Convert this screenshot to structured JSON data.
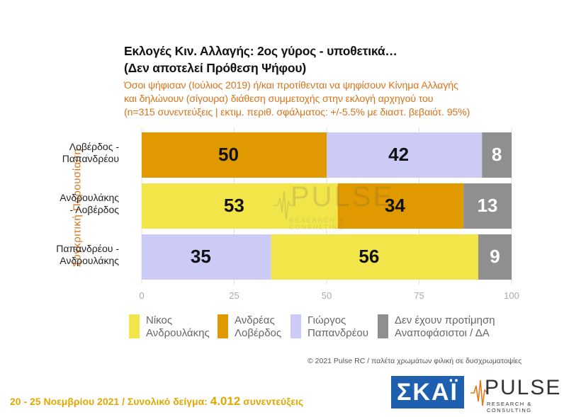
{
  "title_line1": "Εκλογές Κιν. Αλλαγής: 2ος γύρος - υποθετικά…",
  "title_line2": "(Δεν αποτελεί Πρόθεση Ψήφου)",
  "subtitle_line1": "Όσοι ψήφισαν (Ιούλιος 2019) ή/και προτίθενται να ψηφίσουν Κίνημα Αλλαγής",
  "subtitle_line2": "και δηλώνουν (σίγουρα) διάθεση συμμετοχής στην εκλογή αρχηγού του",
  "subtitle_line3": "(n=315 συνεντεύξεις | εκτιμ. περιθ. σφάλματος: +/-5.5% με διαστ. βεβαιότ. 95%)",
  "side_label": "Συγκριτική Παρουσίαση",
  "watermark": {
    "word": "PULSE",
    "small": "RESEARCH & CONSULTING"
  },
  "copyright": "© 2021 Pulse RC  /  παλέτα χρωμάτων φιλική σε δυσχρωματοψίες",
  "footer": {
    "dates": "20 - 25  Νοεμβρίου 2021  /  Συνολικό δείγμα:",
    "sample": "4.012",
    "unit": "συνεντεύξεις"
  },
  "logos": {
    "skai": "ΣΚΑΪ",
    "pulse": "PULSE",
    "pulse_sub": "RESEARCH & CONSULTING"
  },
  "chart_data": {
    "type": "bar",
    "orientation": "horizontal",
    "stacked": true,
    "title": "Εκλογές Κιν. Αλλαγής: 2ος γύρος - υποθετικά…",
    "categories": [
      [
        "Λοβέρδος -",
        "Παπανδρέου"
      ],
      [
        "Ανδρουλάκης",
        "- Λοβέρδος"
      ],
      [
        "Παπανδρέου -",
        "Ανδρουλάκης"
      ]
    ],
    "xlim": [
      0,
      100
    ],
    "xticks": [
      "0",
      "25",
      "50",
      "75",
      "100"
    ],
    "grid": true,
    "legend_position": "bottom",
    "legend": [
      {
        "lines": [
          "Νίκος",
          "Ανδρουλάκης"
        ],
        "color": "#f2e54a"
      },
      {
        "lines": [
          "Ανδρέας",
          "Λοβέρδος"
        ],
        "color": "#e09a00"
      },
      {
        "lines": [
          "Γιώργος",
          "Παπανδρέου"
        ],
        "color": "#cccbf6"
      },
      {
        "lines": [
          "Δεν έχουν προτίμηση",
          "Αναποφάσιστοι / ΔΑ"
        ],
        "color": "#8f8f8f"
      }
    ],
    "rows": [
      {
        "segments": [
          {
            "value": 50,
            "label": "50",
            "color": "#e09a00",
            "text_color": "#111111"
          },
          {
            "value": 42,
            "label": "42",
            "color": "#cccbf6",
            "text_color": "#111111"
          },
          {
            "value": 8,
            "label": "8",
            "color": "#8f8f8f",
            "text_color": "#ffffff"
          }
        ]
      },
      {
        "segments": [
          {
            "value": 53,
            "label": "53",
            "color": "#f2e54a",
            "text_color": "#111111"
          },
          {
            "value": 34,
            "label": "34",
            "color": "#e09a00",
            "text_color": "#111111"
          },
          {
            "value": 13,
            "label": "13",
            "color": "#8f8f8f",
            "text_color": "#ffffff"
          }
        ]
      },
      {
        "segments": [
          {
            "value": 35,
            "label": "35",
            "color": "#cccbf6",
            "text_color": "#111111"
          },
          {
            "value": 56,
            "label": "56",
            "color": "#f2e54a",
            "text_color": "#111111"
          },
          {
            "value": 9,
            "label": "9",
            "color": "#8f8f8f",
            "text_color": "#ffffff"
          }
        ]
      }
    ]
  }
}
